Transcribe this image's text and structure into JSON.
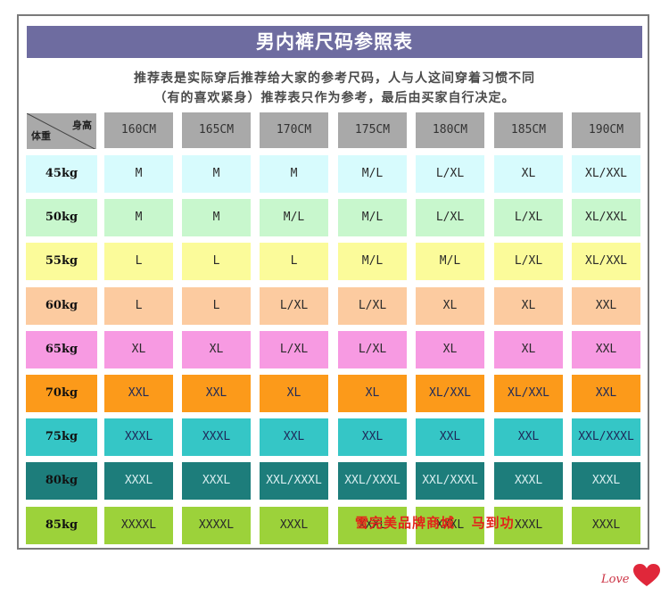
{
  "title": "男内裤尺码参照表",
  "subtitle_line1": "推荐表是实际穿后推荐给大家的参考尺码，人与人这间穿着习惯不同",
  "subtitle_line2": "（有的喜欢紧身）推荐表只作为参考，最后由买家自行决定。",
  "corner": {
    "height_label": "身高",
    "weight_label": "体重"
  },
  "heights": [
    "160CM",
    "165CM",
    "170CM",
    "175CM",
    "180CM",
    "185CM",
    "190CM"
  ],
  "weights": [
    "45kg",
    "50kg",
    "55kg",
    "60kg",
    "65kg",
    "70kg",
    "75kg",
    "80kg",
    "85kg"
  ],
  "row_colors": [
    "#d7fbfd",
    "#c8f7cd",
    "#fbfb9a",
    "#fccba0",
    "#f79ae2",
    "#fc9a1a",
    "#35c6c6",
    "#1d7d7b",
    "#9cd23a"
  ],
  "sizes": [
    [
      "M",
      "M",
      "M",
      "M/L",
      "L/XL",
      "XL",
      "XL/XXL"
    ],
    [
      "M",
      "M",
      "M/L",
      "M/L",
      "L/XL",
      "L/XL",
      "XL/XXL"
    ],
    [
      "L",
      "L",
      "L",
      "M/L",
      "M/L",
      "L/XL",
      "XL/XXL"
    ],
    [
      "L",
      "L",
      "L/XL",
      "L/XL",
      "XL",
      "XL",
      "XXL"
    ],
    [
      "XL",
      "XL",
      "L/XL",
      "L/XL",
      "XL",
      "XL",
      "XXL"
    ],
    [
      "XXL",
      "XXL",
      "XL",
      "XL",
      "XL/XXL",
      "XL/XXL",
      "XXL"
    ],
    [
      "XXXL",
      "XXXL",
      "XXL",
      "XXL",
      "XXL",
      "XXL",
      "XXL/XXXL"
    ],
    [
      "XXXL",
      "XXXL",
      "XXL/XXXL",
      "XXL/XXXL",
      "XXL/XXXL",
      "XXXL",
      "XXXL"
    ],
    [
      "XXXXL",
      "XXXXL",
      "XXXL",
      "XXXL",
      "XXXL",
      "XXXL",
      "XXXL"
    ]
  ],
  "watermark": "雪完美品牌商城   马到功",
  "love_text": "Love"
}
